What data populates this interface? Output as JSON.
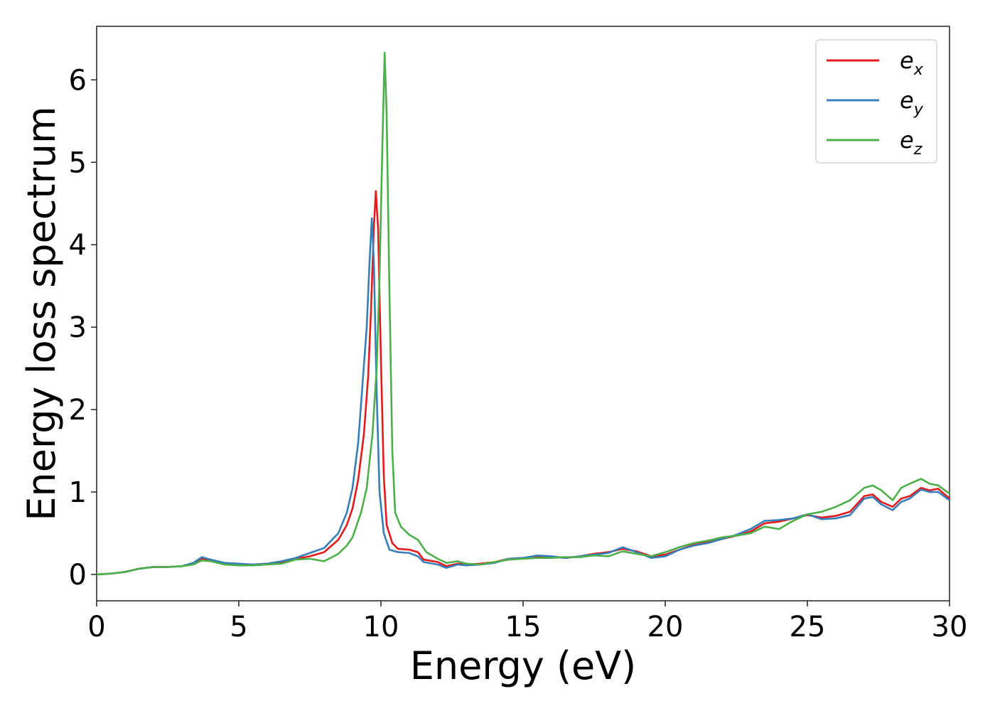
{
  "chart_data": {
    "type": "line",
    "xlabel": "Energy (eV)",
    "ylabel": "Energy loss spectrum",
    "xlim": [
      0,
      30
    ],
    "ylim": [
      -0.32,
      6.65
    ],
    "x_ticks": [
      0,
      5,
      10,
      15,
      20,
      25,
      30
    ],
    "y_ticks": [
      0,
      1,
      2,
      3,
      4,
      5,
      6
    ],
    "x_tick_labels": [
      "0",
      "5",
      "10",
      "15",
      "20",
      "25",
      "30"
    ],
    "y_tick_labels": [
      "0",
      "1",
      "2",
      "3",
      "4",
      "5",
      "6"
    ],
    "grid": false,
    "legend_position": "top-right",
    "series": [
      {
        "name": "e_x",
        "legend_base": "e",
        "legend_sub": "x",
        "color": "#e41a1c",
        "points": [
          [
            0,
            0
          ],
          [
            0.5,
            0.01
          ],
          [
            1,
            0.03
          ],
          [
            1.5,
            0.07
          ],
          [
            2,
            0.09
          ],
          [
            2.5,
            0.09
          ],
          [
            3,
            0.1
          ],
          [
            3.4,
            0.13
          ],
          [
            3.7,
            0.19
          ],
          [
            4,
            0.17
          ],
          [
            4.5,
            0.13
          ],
          [
            5,
            0.12
          ],
          [
            5.5,
            0.12
          ],
          [
            6,
            0.13
          ],
          [
            6.5,
            0.15
          ],
          [
            7,
            0.19
          ],
          [
            7.5,
            0.22
          ],
          [
            8,
            0.27
          ],
          [
            8.5,
            0.42
          ],
          [
            8.8,
            0.6
          ],
          [
            9,
            0.8
          ],
          [
            9.2,
            1.15
          ],
          [
            9.4,
            1.7
          ],
          [
            9.55,
            2.4
          ],
          [
            9.65,
            3.2
          ],
          [
            9.75,
            4.2
          ],
          [
            9.82,
            4.65
          ],
          [
            9.9,
            4.2
          ],
          [
            10,
            2.6
          ],
          [
            10.1,
            1.2
          ],
          [
            10.2,
            0.6
          ],
          [
            10.4,
            0.38
          ],
          [
            10.6,
            0.31
          ],
          [
            11,
            0.3
          ],
          [
            11.3,
            0.27
          ],
          [
            11.5,
            0.18
          ],
          [
            12,
            0.15
          ],
          [
            12.3,
            0.1
          ],
          [
            12.7,
            0.13
          ],
          [
            13,
            0.12
          ],
          [
            13.5,
            0.13
          ],
          [
            14,
            0.15
          ],
          [
            14.5,
            0.19
          ],
          [
            15,
            0.2
          ],
          [
            15.5,
            0.22
          ],
          [
            16,
            0.21
          ],
          [
            16.5,
            0.2
          ],
          [
            17,
            0.22
          ],
          [
            17.5,
            0.25
          ],
          [
            18,
            0.27
          ],
          [
            18.5,
            0.31
          ],
          [
            19,
            0.28
          ],
          [
            19.5,
            0.22
          ],
          [
            20,
            0.24
          ],
          [
            20.5,
            0.3
          ],
          [
            21,
            0.36
          ],
          [
            21.5,
            0.39
          ],
          [
            22,
            0.43
          ],
          [
            22.5,
            0.47
          ],
          [
            23,
            0.52
          ],
          [
            23.5,
            0.62
          ],
          [
            24,
            0.64
          ],
          [
            24.5,
            0.68
          ],
          [
            25,
            0.72
          ],
          [
            25.5,
            0.69
          ],
          [
            26,
            0.71
          ],
          [
            26.5,
            0.76
          ],
          [
            27,
            0.95
          ],
          [
            27.3,
            0.97
          ],
          [
            27.6,
            0.88
          ],
          [
            28,
            0.82
          ],
          [
            28.3,
            0.92
          ],
          [
            28.6,
            0.95
          ],
          [
            29,
            1.05
          ],
          [
            29.3,
            1.02
          ],
          [
            29.6,
            1.04
          ],
          [
            30,
            0.92
          ]
        ]
      },
      {
        "name": "e_y",
        "legend_base": "e",
        "legend_sub": "y",
        "color": "#377eb8",
        "points": [
          [
            0,
            0
          ],
          [
            0.5,
            0.01
          ],
          [
            1,
            0.03
          ],
          [
            1.5,
            0.07
          ],
          [
            2,
            0.09
          ],
          [
            2.5,
            0.09
          ],
          [
            3,
            0.1
          ],
          [
            3.4,
            0.14
          ],
          [
            3.7,
            0.21
          ],
          [
            4,
            0.18
          ],
          [
            4.5,
            0.14
          ],
          [
            5,
            0.13
          ],
          [
            5.5,
            0.12
          ],
          [
            6,
            0.13
          ],
          [
            6.5,
            0.16
          ],
          [
            7,
            0.2
          ],
          [
            7.5,
            0.26
          ],
          [
            8,
            0.32
          ],
          [
            8.5,
            0.5
          ],
          [
            8.8,
            0.75
          ],
          [
            9,
            1.05
          ],
          [
            9.2,
            1.6
          ],
          [
            9.35,
            2.3
          ],
          [
            9.5,
            3.0
          ],
          [
            9.6,
            3.8
          ],
          [
            9.68,
            4.32
          ],
          [
            9.75,
            3.8
          ],
          [
            9.85,
            2.2
          ],
          [
            9.95,
            1.0
          ],
          [
            10.1,
            0.5
          ],
          [
            10.3,
            0.3
          ],
          [
            10.6,
            0.27
          ],
          [
            11,
            0.26
          ],
          [
            11.3,
            0.22
          ],
          [
            11.5,
            0.15
          ],
          [
            12,
            0.12
          ],
          [
            12.3,
            0.08
          ],
          [
            12.7,
            0.12
          ],
          [
            13,
            0.11
          ],
          [
            13.5,
            0.12
          ],
          [
            14,
            0.14
          ],
          [
            14.5,
            0.19
          ],
          [
            15,
            0.2
          ],
          [
            15.5,
            0.23
          ],
          [
            16,
            0.22
          ],
          [
            16.5,
            0.2
          ],
          [
            17,
            0.22
          ],
          [
            17.5,
            0.24
          ],
          [
            18,
            0.26
          ],
          [
            18.5,
            0.33
          ],
          [
            19,
            0.27
          ],
          [
            19.5,
            0.2
          ],
          [
            20,
            0.22
          ],
          [
            20.5,
            0.3
          ],
          [
            21,
            0.35
          ],
          [
            21.5,
            0.38
          ],
          [
            22,
            0.43
          ],
          [
            22.5,
            0.48
          ],
          [
            23,
            0.55
          ],
          [
            23.5,
            0.65
          ],
          [
            24,
            0.66
          ],
          [
            24.5,
            0.68
          ],
          [
            25,
            0.73
          ],
          [
            25.5,
            0.67
          ],
          [
            26,
            0.68
          ],
          [
            26.5,
            0.72
          ],
          [
            27,
            0.92
          ],
          [
            27.3,
            0.94
          ],
          [
            27.6,
            0.85
          ],
          [
            28,
            0.78
          ],
          [
            28.3,
            0.88
          ],
          [
            28.6,
            0.92
          ],
          [
            29,
            1.03
          ],
          [
            29.3,
            1.0
          ],
          [
            29.6,
            1.0
          ],
          [
            30,
            0.9
          ]
        ]
      },
      {
        "name": "e_z",
        "legend_base": "e",
        "legend_sub": "z",
        "color": "#4daf4a",
        "points": [
          [
            0,
            0
          ],
          [
            0.5,
            0.01
          ],
          [
            1,
            0.03
          ],
          [
            1.5,
            0.07
          ],
          [
            2,
            0.09
          ],
          [
            2.5,
            0.09
          ],
          [
            3,
            0.1
          ],
          [
            3.4,
            0.12
          ],
          [
            3.7,
            0.17
          ],
          [
            4,
            0.16
          ],
          [
            4.5,
            0.12
          ],
          [
            5,
            0.11
          ],
          [
            5.5,
            0.11
          ],
          [
            6,
            0.12
          ],
          [
            6.5,
            0.13
          ],
          [
            7,
            0.18
          ],
          [
            7.5,
            0.19
          ],
          [
            8,
            0.16
          ],
          [
            8.5,
            0.25
          ],
          [
            8.8,
            0.35
          ],
          [
            9,
            0.45
          ],
          [
            9.3,
            0.75
          ],
          [
            9.5,
            1.05
          ],
          [
            9.7,
            1.7
          ],
          [
            9.85,
            2.5
          ],
          [
            9.95,
            3.6
          ],
          [
            10.05,
            5.2
          ],
          [
            10.13,
            6.33
          ],
          [
            10.2,
            5.6
          ],
          [
            10.3,
            3.4
          ],
          [
            10.4,
            1.5
          ],
          [
            10.5,
            0.75
          ],
          [
            10.7,
            0.58
          ],
          [
            11,
            0.48
          ],
          [
            11.3,
            0.42
          ],
          [
            11.6,
            0.27
          ],
          [
            12,
            0.19
          ],
          [
            12.3,
            0.14
          ],
          [
            12.7,
            0.16
          ],
          [
            13,
            0.13
          ],
          [
            13.5,
            0.12
          ],
          [
            14,
            0.15
          ],
          [
            14.5,
            0.18
          ],
          [
            15,
            0.19
          ],
          [
            15.5,
            0.2
          ],
          [
            16,
            0.2
          ],
          [
            16.5,
            0.21
          ],
          [
            17,
            0.21
          ],
          [
            17.5,
            0.23
          ],
          [
            18,
            0.22
          ],
          [
            18.5,
            0.28
          ],
          [
            19,
            0.25
          ],
          [
            19.5,
            0.22
          ],
          [
            20,
            0.27
          ],
          [
            20.5,
            0.33
          ],
          [
            21,
            0.38
          ],
          [
            21.5,
            0.41
          ],
          [
            22,
            0.45
          ],
          [
            22.5,
            0.47
          ],
          [
            23,
            0.5
          ],
          [
            23.5,
            0.58
          ],
          [
            24,
            0.55
          ],
          [
            24.5,
            0.65
          ],
          [
            25,
            0.73
          ],
          [
            25.5,
            0.76
          ],
          [
            26,
            0.82
          ],
          [
            26.5,
            0.9
          ],
          [
            27,
            1.05
          ],
          [
            27.3,
            1.08
          ],
          [
            27.6,
            1.02
          ],
          [
            28,
            0.9
          ],
          [
            28.3,
            1.05
          ],
          [
            28.6,
            1.1
          ],
          [
            29,
            1.16
          ],
          [
            29.3,
            1.1
          ],
          [
            29.6,
            1.08
          ],
          [
            30,
            0.98
          ]
        ]
      }
    ]
  }
}
